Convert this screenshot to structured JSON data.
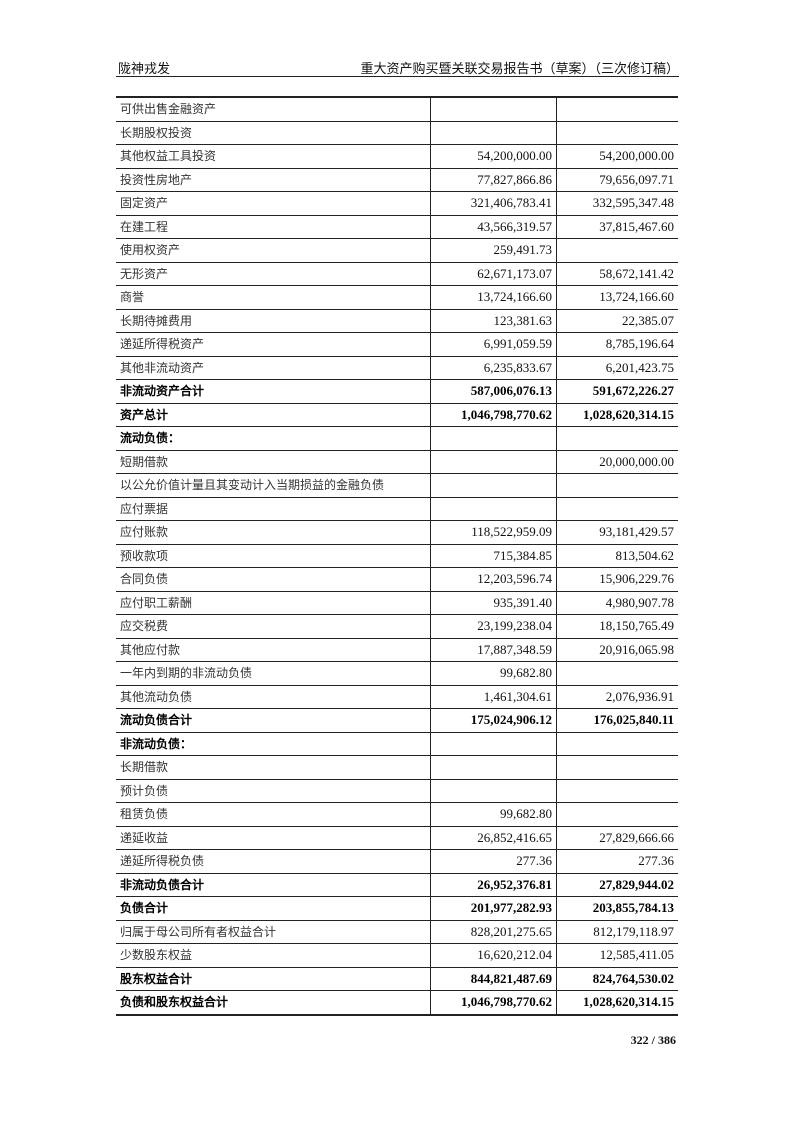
{
  "header": {
    "company": "陇神戎发",
    "doc_title": "重大资产购买暨关联交易报告书（草案）（三次修订稿）"
  },
  "table": {
    "rows": [
      {
        "label": "可供出售金融资产",
        "v1": "",
        "v2": "",
        "bold": false
      },
      {
        "label": "长期股权投资",
        "v1": "",
        "v2": "",
        "bold": false
      },
      {
        "label": "其他权益工具投资",
        "v1": "54,200,000.00",
        "v2": "54,200,000.00",
        "bold": false
      },
      {
        "label": "投资性房地产",
        "v1": "77,827,866.86",
        "v2": "79,656,097.71",
        "bold": false
      },
      {
        "label": "固定资产",
        "v1": "321,406,783.41",
        "v2": "332,595,347.48",
        "bold": false
      },
      {
        "label": "在建工程",
        "v1": "43,566,319.57",
        "v2": "37,815,467.60",
        "bold": false
      },
      {
        "label": "使用权资产",
        "v1": "259,491.73",
        "v2": "",
        "bold": false
      },
      {
        "label": "无形资产",
        "v1": "62,671,173.07",
        "v2": "58,672,141.42",
        "bold": false
      },
      {
        "label": "商誉",
        "v1": "13,724,166.60",
        "v2": "13,724,166.60",
        "bold": false
      },
      {
        "label": "长期待摊费用",
        "v1": "123,381.63",
        "v2": "22,385.07",
        "bold": false
      },
      {
        "label": "递延所得税资产",
        "v1": "6,991,059.59",
        "v2": "8,785,196.64",
        "bold": false
      },
      {
        "label": "其他非流动资产",
        "v1": "6,235,833.67",
        "v2": "6,201,423.75",
        "bold": false
      },
      {
        "label": "非流动资产合计",
        "v1": "587,006,076.13",
        "v2": "591,672,226.27",
        "bold": true
      },
      {
        "label": "资产总计",
        "v1": "1,046,798,770.62",
        "v2": "1,028,620,314.15",
        "bold": true
      },
      {
        "label": "流动负债：",
        "v1": "",
        "v2": "",
        "bold": true
      },
      {
        "label": "短期借款",
        "v1": "",
        "v2": "20,000,000.00",
        "bold": false
      },
      {
        "label": "以公允价值计量且其变动计入当期损益的金融负债",
        "v1": "",
        "v2": "",
        "bold": false
      },
      {
        "label": "应付票据",
        "v1": "",
        "v2": "",
        "bold": false
      },
      {
        "label": "应付账款",
        "v1": "118,522,959.09",
        "v2": "93,181,429.57",
        "bold": false
      },
      {
        "label": "预收款项",
        "v1": "715,384.85",
        "v2": "813,504.62",
        "bold": false
      },
      {
        "label": "合同负债",
        "v1": "12,203,596.74",
        "v2": "15,906,229.76",
        "bold": false
      },
      {
        "label": "应付职工薪酬",
        "v1": "935,391.40",
        "v2": "4,980,907.78",
        "bold": false
      },
      {
        "label": "应交税费",
        "v1": "23,199,238.04",
        "v2": "18,150,765.49",
        "bold": false
      },
      {
        "label": "其他应付款",
        "v1": "17,887,348.59",
        "v2": "20,916,065.98",
        "bold": false
      },
      {
        "label": "一年内到期的非流动负债",
        "v1": "99,682.80",
        "v2": "",
        "bold": false
      },
      {
        "label": "其他流动负债",
        "v1": "1,461,304.61",
        "v2": "2,076,936.91",
        "bold": false
      },
      {
        "label": "流动负债合计",
        "v1": "175,024,906.12",
        "v2": "176,025,840.11",
        "bold": true
      },
      {
        "label": "非流动负债：",
        "v1": "",
        "v2": "",
        "bold": true
      },
      {
        "label": "长期借款",
        "v1": "",
        "v2": "",
        "bold": false
      },
      {
        "label": "预计负债",
        "v1": "",
        "v2": "",
        "bold": false
      },
      {
        "label": "租赁负债",
        "v1": "99,682.80",
        "v2": "",
        "bold": false
      },
      {
        "label": "递延收益",
        "v1": "26,852,416.65",
        "v2": "27,829,666.66",
        "bold": false
      },
      {
        "label": "递延所得税负债",
        "v1": "277.36",
        "v2": "277.36",
        "bold": false
      },
      {
        "label": "非流动负债合计",
        "v1": "26,952,376.81",
        "v2": "27,829,944.02",
        "bold": true
      },
      {
        "label": "负债合计",
        "v1": "201,977,282.93",
        "v2": "203,855,784.13",
        "bold": true
      },
      {
        "label": "归属于母公司所有者权益合计",
        "v1": "828,201,275.65",
        "v2": "812,179,118.97",
        "bold": false
      },
      {
        "label": "少数股东权益",
        "v1": "16,620,212.04",
        "v2": "12,585,411.05",
        "bold": false
      },
      {
        "label": "股东权益合计",
        "v1": "844,821,487.69",
        "v2": "824,764,530.02",
        "bold": true
      },
      {
        "label": "负债和股东权益合计",
        "v1": "1,046,798,770.62",
        "v2": "1,028,620,314.15",
        "bold": true
      }
    ]
  },
  "footer": {
    "page_number": "322 / 386"
  }
}
